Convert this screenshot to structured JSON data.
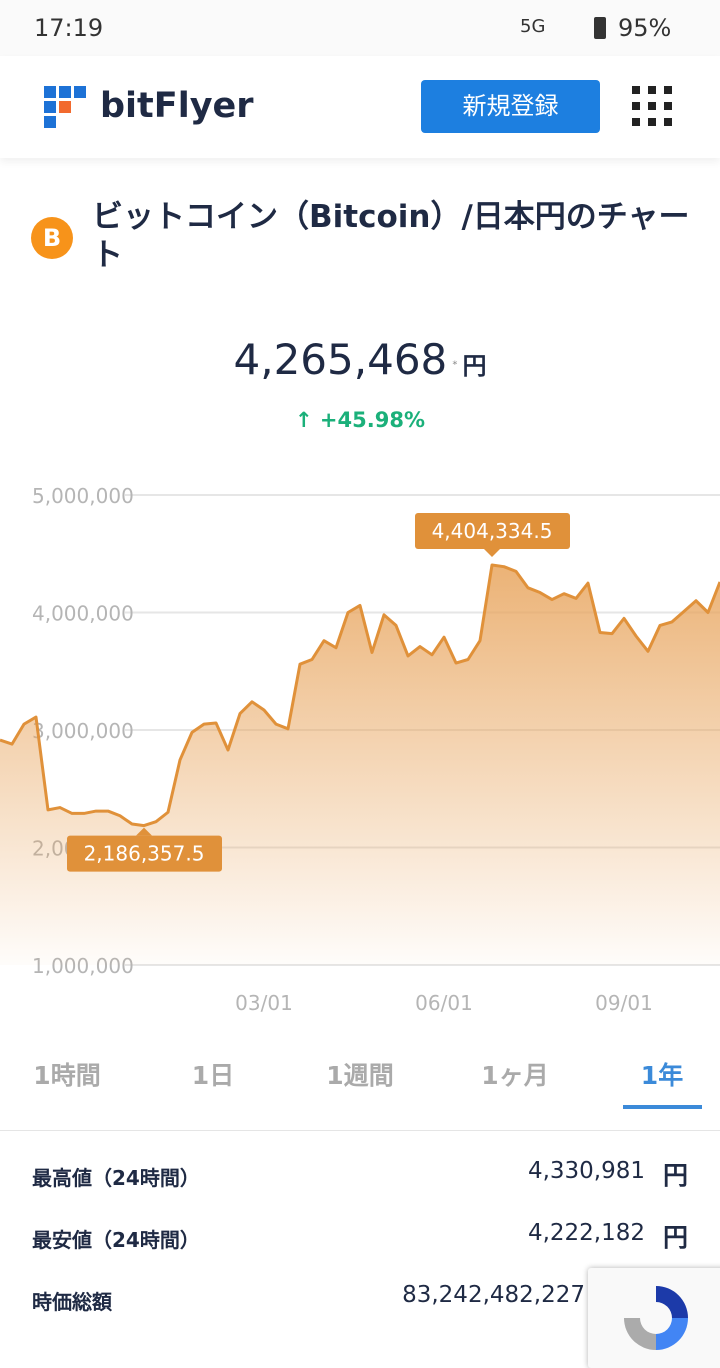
{
  "status_bar": {
    "time": "17:19",
    "network": "5G",
    "battery": "95%"
  },
  "header": {
    "logo": "bitFlyer",
    "signup": "新規登録"
  },
  "title": "ビットコイン（Bitcoin）/日本円のチャート",
  "price": {
    "value": "4,265,468",
    "note": "*",
    "unit": "円",
    "change": "+45.98%"
  },
  "chart_data": {
    "type": "line",
    "color": "#e0913a",
    "categories": [
      null,
      null,
      null,
      null,
      null,
      null,
      null,
      null,
      null,
      null,
      null,
      null,
      null,
      null,
      null,
      null,
      null,
      null,
      null,
      null,
      null,
      null,
      "03/01",
      null,
      null,
      null,
      null,
      null,
      null,
      null,
      null,
      null,
      null,
      null,
      null,
      null,
      null,
      "06/01",
      null,
      null,
      null,
      null,
      null,
      null,
      null,
      null,
      null,
      null,
      null,
      null,
      null,
      null,
      "09/01",
      null,
      null,
      null,
      null,
      null,
      null,
      null,
      null
    ],
    "values": [
      2915000,
      2880000,
      3050000,
      3110000,
      2320000,
      2340000,
      2290000,
      2290000,
      2310000,
      2310000,
      2270000,
      2200000,
      2186357.5,
      2220000,
      2300000,
      2745000,
      2980000,
      3050000,
      3060000,
      2830000,
      3140000,
      3240000,
      3170000,
      3050000,
      3010000,
      3560000,
      3600000,
      3760000,
      3700000,
      4000000,
      4060000,
      3660000,
      3980000,
      3890000,
      3630000,
      3710000,
      3640000,
      3790000,
      3570000,
      3600000,
      3760000,
      4404334.5,
      4390000,
      4350000,
      4210000,
      4170000,
      4110000,
      4160000,
      4120000,
      4250000,
      3830000,
      3820000,
      3950000,
      3800000,
      3670000,
      3890000,
      3920000,
      4010000,
      4100000,
      4000000,
      4260000
    ],
    "value_labels": [
      null,
      null,
      null,
      null,
      null,
      null,
      null,
      null,
      null,
      null,
      null,
      null,
      "2,186,357.5",
      null,
      null,
      null,
      null,
      null,
      null,
      null,
      null,
      null,
      null,
      null,
      null,
      null,
      null,
      null,
      null,
      null,
      null,
      null,
      null,
      null,
      null,
      null,
      null,
      null,
      null,
      null,
      null,
      "4,404,334.5",
      null,
      null,
      null,
      null,
      null,
      null,
      null,
      null,
      null,
      null,
      null,
      null,
      null,
      null,
      null,
      null,
      null,
      null,
      null
    ],
    "ylim": [
      1000000,
      5000000
    ],
    "yticks": [
      {
        "value": 1000000,
        "label": "1,000,000"
      },
      {
        "value": 2000000,
        "label": "2,000,000"
      },
      {
        "value": 3000000,
        "label": "3,000,000"
      },
      {
        "value": 4000000,
        "label": "4,000,000"
      },
      {
        "value": 5000000,
        "label": "5,000,000"
      }
    ],
    "grid": true
  },
  "tabs": [
    "1時間",
    "1日",
    "1週間",
    "1ヶ月",
    "1年"
  ],
  "stats": [
    [
      "最高値（24時間）",
      "4,330,981",
      "円"
    ],
    [
      "最安値（24時間）",
      "4,222,182",
      "円"
    ],
    [
      "時価総額",
      "83,242,482,227",
      null
    ]
  ]
}
